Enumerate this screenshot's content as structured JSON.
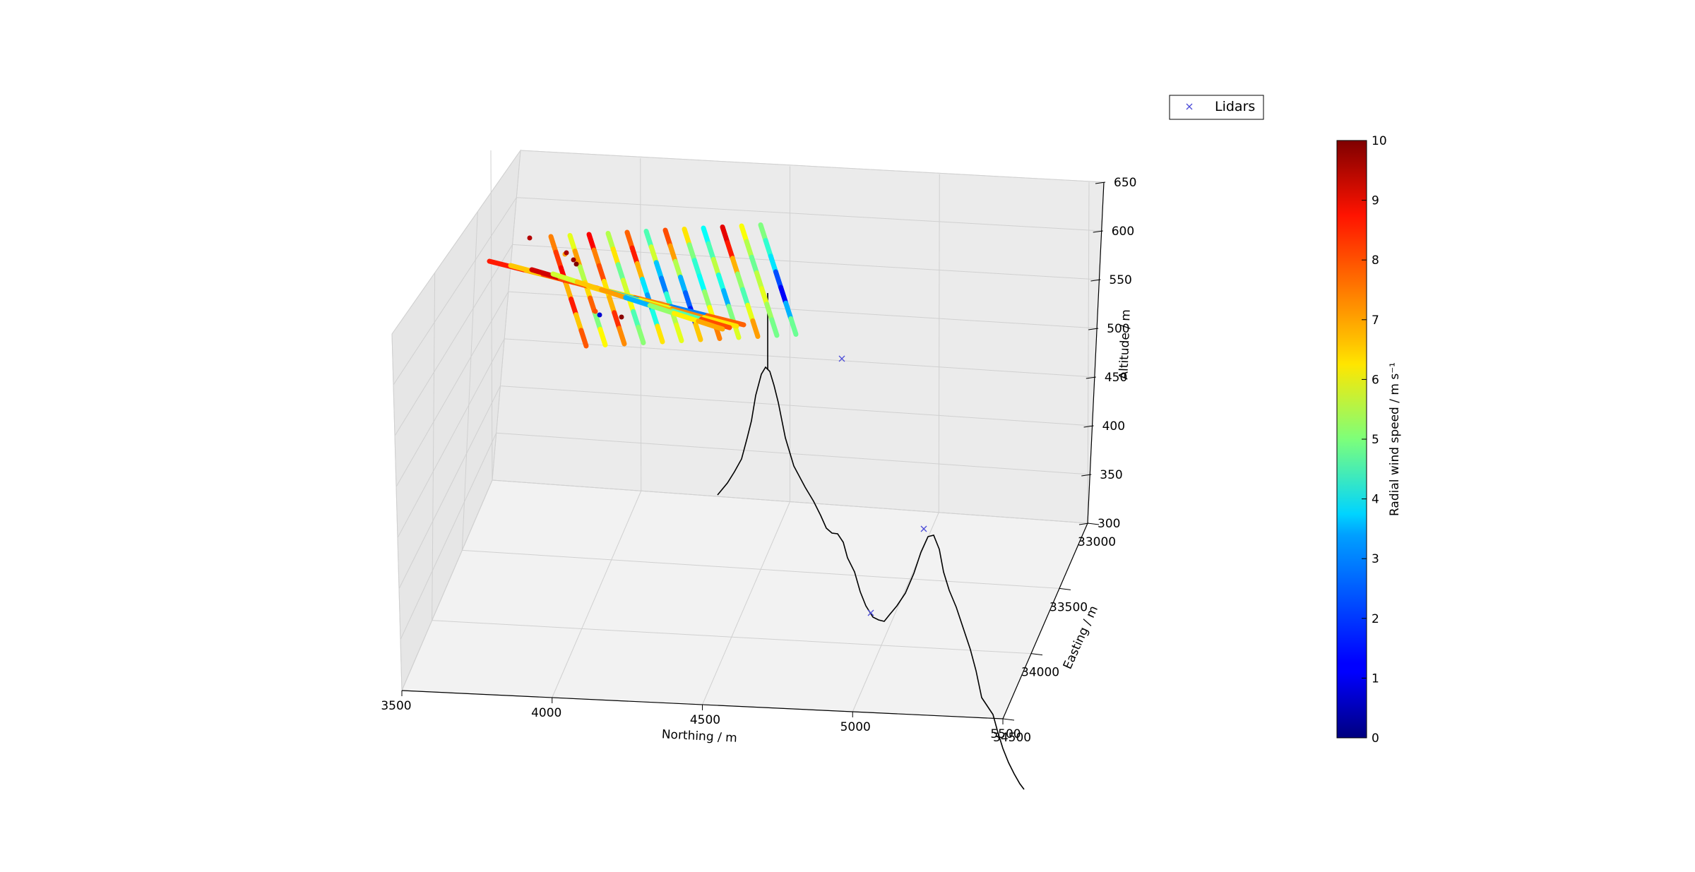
{
  "chart_data": {
    "type": "scatter",
    "projection": "3d",
    "xlabel": "Northing / m",
    "ylabel": "Easting / m",
    "zlabel": "Altitude / m",
    "xlim": [
      3500,
      5500
    ],
    "ylim": [
      33000,
      34500
    ],
    "zlim": [
      300,
      650
    ],
    "x_ticks": [
      "3500",
      "4000",
      "4500",
      "5000",
      "5500"
    ],
    "y_ticks": [
      "33000",
      "33500",
      "34000",
      "34500"
    ],
    "z_ticks": [
      "300",
      "350",
      "400",
      "450",
      "500",
      "550",
      "600",
      "650"
    ],
    "grid": true,
    "legend": {
      "position": "top-right",
      "entries": [
        {
          "label": "Lidars",
          "marker": "x",
          "color": "#4d4dd8"
        }
      ]
    },
    "colorbar": {
      "label": "Radial wind speed / m s⁻¹",
      "range": [
        0,
        10
      ],
      "ticks": [
        "0",
        "1",
        "2",
        "3",
        "4",
        "5",
        "6",
        "7",
        "8",
        "9",
        "10"
      ],
      "colormap": "jet"
    },
    "series": [
      {
        "name": "Lidars",
        "kind": "markers",
        "marker": "x",
        "points": [
          {
            "northing": 4750,
            "easting": 33000,
            "altitude": 455
          },
          {
            "northing": 5300,
            "easting": 33900,
            "altitude": 310
          },
          {
            "northing": 5100,
            "easting": 34050,
            "altitude": 300
          }
        ]
      },
      {
        "kind": "terrain-profile",
        "points": [
          {
            "northing": 4400,
            "easting": 32900,
            "altitude": 330
          },
          {
            "northing": 4500,
            "easting": 32900,
            "altitude": 460
          },
          {
            "northing": 4700,
            "easting": 33300,
            "altitude": 360
          },
          {
            "northing": 5000,
            "easting": 34100,
            "altitude": 300
          },
          {
            "northing": 5200,
            "easting": 33900,
            "altitude": 345
          },
          {
            "northing": 5550,
            "easting": 34800,
            "altitude": 250
          }
        ]
      },
      {
        "kind": "radial-wind-scan",
        "beams": [
          {
            "speeds": [
              7.5,
              8.2,
              8.8,
              7.0,
              8.5,
              6.8,
              7.9
            ]
          },
          {
            "speeds": [
              6.0,
              7.2,
              5.5,
              6.6,
              7.8,
              5.0,
              6.3
            ]
          },
          {
            "speeds": [
              8.8,
              7.5,
              8.0,
              6.5,
              7.0,
              8.3,
              7.4
            ]
          },
          {
            "speeds": [
              5.5,
              6.5,
              4.8,
              5.8,
              6.2,
              4.5,
              5.1
            ]
          },
          {
            "speeds": [
              7.8,
              8.5,
              7.0,
              3.5,
              2.8,
              4.0,
              6.5
            ]
          },
          {
            "speeds": [
              4.5,
              5.8,
              3.2,
              2.5,
              4.2,
              5.5,
              6.0
            ]
          },
          {
            "speeds": [
              8.0,
              7.2,
              5.5,
              3.0,
              2.2,
              1.5,
              6.8
            ]
          },
          {
            "speeds": [
              6.5,
              5.0,
              4.2,
              3.8,
              5.2,
              6.2,
              7.5
            ]
          },
          {
            "speeds": [
              3.8,
              4.5,
              5.6,
              4.0,
              3.0,
              5.0,
              5.9
            ]
          },
          {
            "speeds": [
              9.0,
              8.5,
              7.0,
              5.2,
              4.5,
              6.0,
              7.2
            ]
          },
          {
            "speeds": [
              6.2,
              5.5,
              4.8,
              5.6,
              6.0,
              5.3,
              4.9
            ]
          },
          {
            "speeds": [
              5.0,
              4.2,
              3.5,
              2.0,
              1.2,
              3.0,
              4.8
            ]
          }
        ],
        "cross_beams": [
          {
            "speeds": [
              8.5,
              7.0,
              8.8,
              6.5,
              7.5,
              2.5,
              7.8
            ]
          },
          {
            "speeds": [
              6.8,
              8.2,
              7.5,
              3.2,
              6.0,
              7.4,
              6.5
            ]
          },
          {
            "speeds": [
              9.2,
              8.0,
              6.5,
              5.8,
              7.0,
              4.5,
              8.0
            ]
          },
          {
            "speeds": [
              5.8,
              6.8,
              7.2,
              3.0,
              5.2,
              6.4,
              7.1
            ]
          }
        ]
      }
    ]
  }
}
